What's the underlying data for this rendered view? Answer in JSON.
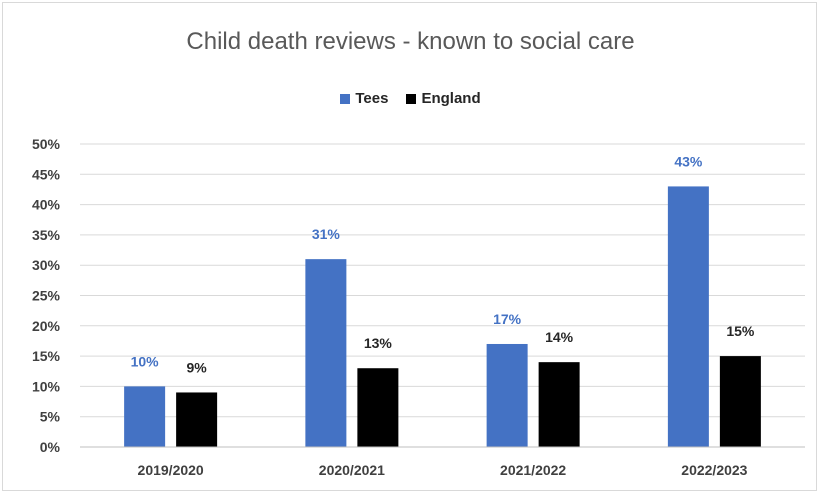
{
  "chart_data": {
    "type": "bar",
    "title": "Child death reviews - known to social care",
    "categories": [
      "2019/2020",
      "2020/2021",
      "2021/2022",
      "2022/2023"
    ],
    "series": [
      {
        "name": "Tees",
        "values": [
          10,
          31,
          17,
          43
        ],
        "labels": [
          "10%",
          "31%",
          "17%",
          "43%"
        ],
        "color": "#4472c4"
      },
      {
        "name": "England",
        "values": [
          9,
          13,
          14,
          15
        ],
        "labels": [
          "9%",
          "13%",
          "14%",
          "15%"
        ],
        "color": "#000000"
      }
    ],
    "ylim": [
      0,
      50
    ],
    "yticks": [
      "0%",
      "5%",
      "10%",
      "15%",
      "20%",
      "25%",
      "30%",
      "35%",
      "40%",
      "45%",
      "50%"
    ],
    "grid": true,
    "legend_position": "top"
  }
}
